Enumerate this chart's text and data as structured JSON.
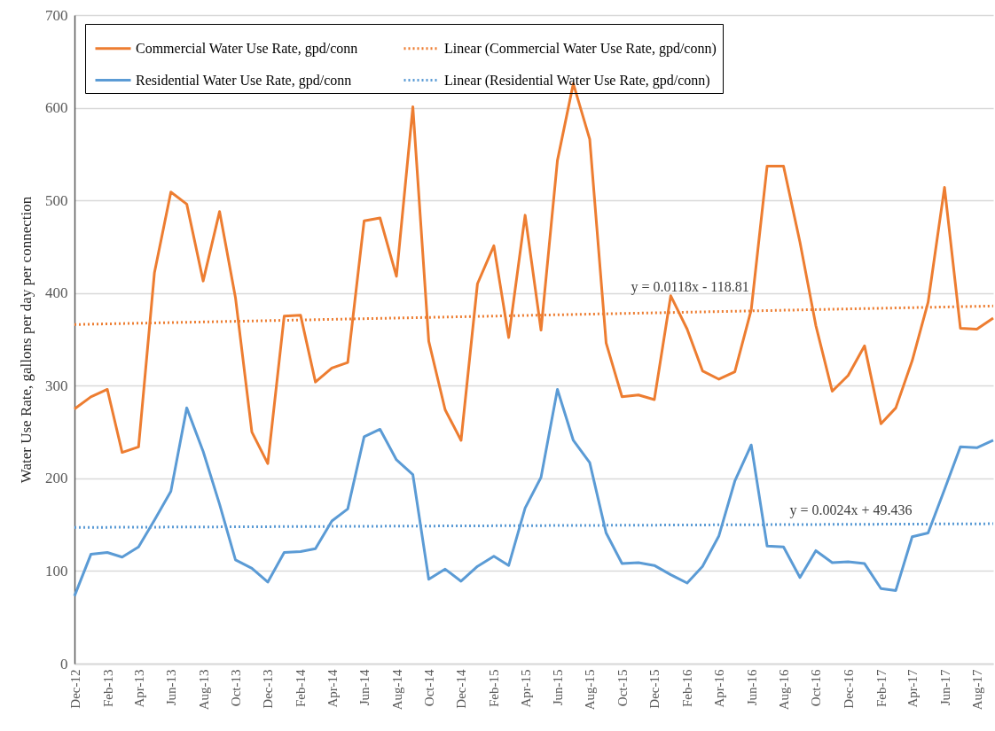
{
  "chart_data": {
    "type": "line",
    "ylabel": "Water Use Rate, gallons per day per connection",
    "x": [
      "2012-12",
      "2013-01",
      "2013-02",
      "2013-03",
      "2013-04",
      "2013-05",
      "2013-06",
      "2013-07",
      "2013-08",
      "2013-09",
      "2013-10",
      "2013-11",
      "2013-12",
      "2014-01",
      "2014-02",
      "2014-03",
      "2014-04",
      "2014-05",
      "2014-06",
      "2014-07",
      "2014-08",
      "2014-09",
      "2014-10",
      "2014-11",
      "2014-12",
      "2015-01",
      "2015-02",
      "2015-03",
      "2015-04",
      "2015-05",
      "2015-06",
      "2015-07",
      "2015-08",
      "2015-09",
      "2015-10",
      "2015-11",
      "2015-12",
      "2016-01",
      "2016-02",
      "2016-03",
      "2016-04",
      "2016-05",
      "2016-06",
      "2016-07",
      "2016-08",
      "2016-09",
      "2016-10",
      "2016-11",
      "2016-12",
      "2017-01",
      "2017-02",
      "2017-03",
      "2017-04",
      "2017-05",
      "2017-06",
      "2017-07",
      "2017-08",
      "2017-09"
    ],
    "series": [
      {
        "name": "Commercial Water Use Rate, gpd/conn",
        "color": "#ed7d31",
        "values": [
          275,
          288,
          296,
          228,
          234,
          422,
          509,
          496,
          413,
          488,
          395,
          250,
          216,
          375,
          376,
          304,
          319,
          325,
          478,
          481,
          418,
          601,
          348,
          274,
          241,
          410,
          451,
          352,
          484,
          360,
          543,
          626,
          566,
          346,
          288,
          290,
          285,
          397,
          361,
          316,
          307,
          315,
          382,
          537,
          537,
          455,
          365,
          294,
          311,
          343,
          259,
          276,
          327,
          390,
          514,
          362,
          361,
          373
        ]
      },
      {
        "name": "Residential Water Use Rate, gpd/conn",
        "color": "#5b9bd5",
        "values": [
          73,
          118,
          120,
          115,
          126,
          155,
          186,
          276,
          229,
          172,
          112,
          103,
          88,
          120,
          121,
          124,
          154,
          167,
          245,
          253,
          220,
          204,
          91,
          102,
          89,
          105,
          116,
          106,
          168,
          201,
          296,
          241,
          217,
          141,
          108,
          109,
          106,
          96,
          87,
          105,
          138,
          197,
          236,
          127,
          126,
          93,
          122,
          109,
          110,
          108,
          81,
          79,
          137,
          141,
          188,
          234,
          233,
          241
        ]
      },
      {
        "name": "Linear (Commercial Water Use Rate, gpd/conn)",
        "color": "#ed7d31",
        "line_style": "dotted",
        "x": [
          "2012-12",
          "2017-09"
        ],
        "values": [
          366,
          386
        ]
      },
      {
        "name": "Linear (Residential Water Use Rate, gpd/conn)",
        "color": "#5b9bd5",
        "line_style": "dotted",
        "x": [
          "2012-12",
          "2017-09"
        ],
        "values": [
          147,
          151
        ]
      }
    ],
    "xlim": [
      "2012-12",
      "2017-09"
    ],
    "xticks": [
      {
        "value": "2012-12",
        "label": "Dec-12"
      },
      {
        "value": "2013-02",
        "label": "Feb-13"
      },
      {
        "value": "2013-04",
        "label": "Apr-13"
      },
      {
        "value": "2013-06",
        "label": "Jun-13"
      },
      {
        "value": "2013-08",
        "label": "Aug-13"
      },
      {
        "value": "2013-10",
        "label": "Oct-13"
      },
      {
        "value": "2013-12",
        "label": "Dec-13"
      },
      {
        "value": "2014-02",
        "label": "Feb-14"
      },
      {
        "value": "2014-04",
        "label": "Apr-14"
      },
      {
        "value": "2014-06",
        "label": "Jun-14"
      },
      {
        "value": "2014-08",
        "label": "Aug-14"
      },
      {
        "value": "2014-10",
        "label": "Oct-14"
      },
      {
        "value": "2014-12",
        "label": "Dec-14"
      },
      {
        "value": "2015-02",
        "label": "Feb-15"
      },
      {
        "value": "2015-04",
        "label": "Apr-15"
      },
      {
        "value": "2015-06",
        "label": "Jun-15"
      },
      {
        "value": "2015-08",
        "label": "Aug-15"
      },
      {
        "value": "2015-10",
        "label": "Oct-15"
      },
      {
        "value": "2015-12",
        "label": "Dec-15"
      },
      {
        "value": "2016-02",
        "label": "Feb-16"
      },
      {
        "value": "2016-04",
        "label": "Apr-16"
      },
      {
        "value": "2016-06",
        "label": "Jun-16"
      },
      {
        "value": "2016-08",
        "label": "Aug-16"
      },
      {
        "value": "2016-10",
        "label": "Oct-16"
      },
      {
        "value": "2016-12",
        "label": "Dec-16"
      },
      {
        "value": "2017-02",
        "label": "Feb-17"
      },
      {
        "value": "2017-04",
        "label": "Apr-17"
      },
      {
        "value": "2017-06",
        "label": "Jun-17"
      },
      {
        "value": "2017-08",
        "label": "Aug-17"
      }
    ],
    "ylim": [
      0,
      700
    ],
    "yticks": [
      0,
      100,
      200,
      300,
      400,
      500,
      600,
      700
    ],
    "grid": "y",
    "legend": "top",
    "annotations": [
      "y = 0.0118x - 118.81",
      "y = 0.0024x + 49.436"
    ]
  }
}
